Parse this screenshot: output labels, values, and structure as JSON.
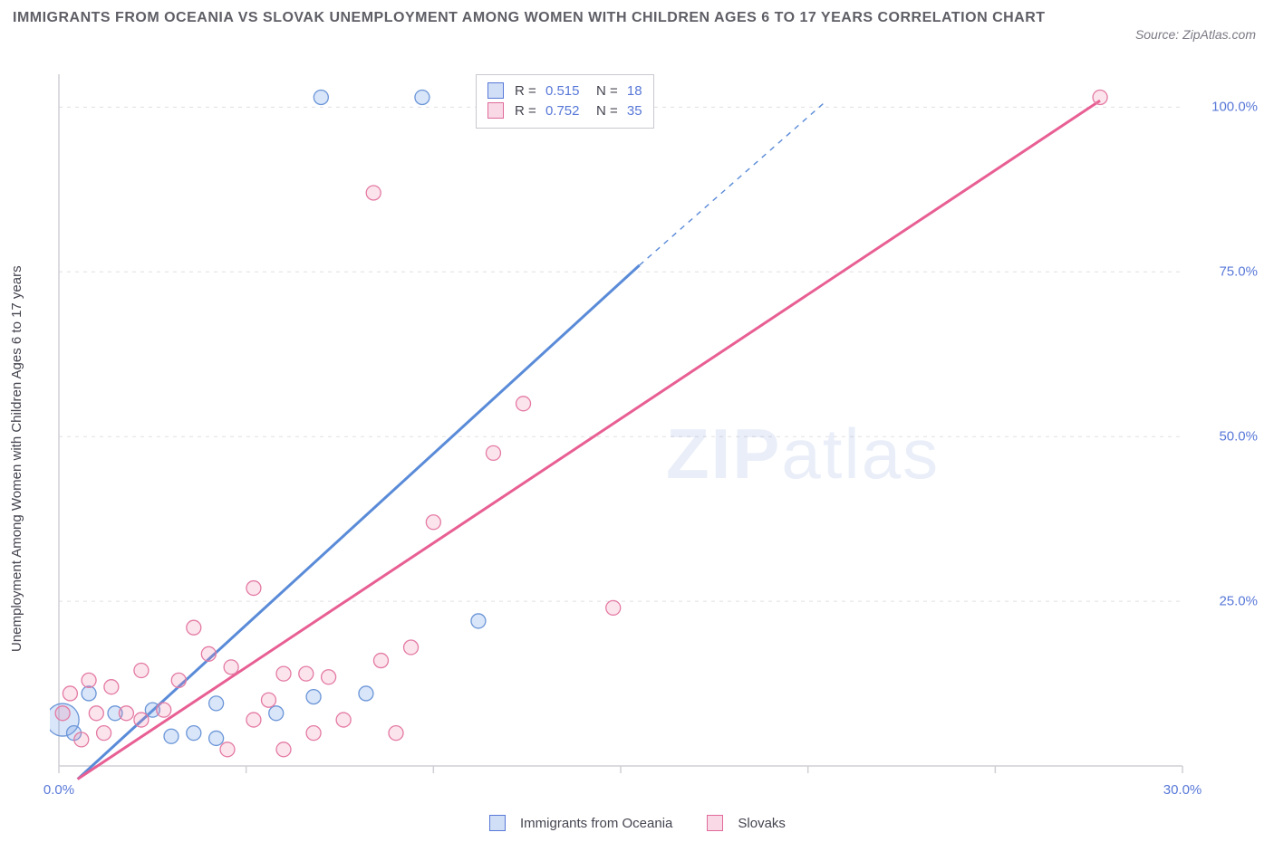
{
  "title": "IMMIGRANTS FROM OCEANIA VS SLOVAK UNEMPLOYMENT AMONG WOMEN WITH CHILDREN AGES 6 TO 17 YEARS CORRELATION CHART",
  "title_fontsize": 16,
  "title_color": "#5e5e66",
  "source_text": "Source: ZipAtlas.com",
  "source_fontsize": 14,
  "ylabel": "Unemployment Among Women with Children Ages 6 to 17 years",
  "watermark": "ZIPatlas",
  "chart": {
    "type": "scatter",
    "background_color": "#ffffff",
    "grid_color": "#e0e0e4",
    "axis_color": "#cfcfd6",
    "tick_label_color": "#5878d8",
    "xlim": [
      0,
      30
    ],
    "ylim": [
      0,
      105
    ],
    "x_ticks": [
      0,
      5,
      10,
      15,
      20,
      25,
      30
    ],
    "x_tick_labels": [
      "0.0%",
      "",
      "",
      "",
      "",
      "",
      "30.0%"
    ],
    "y_ticks": [
      25,
      50,
      75,
      100
    ],
    "y_tick_labels": [
      "25.0%",
      "50.0%",
      "75.0%",
      "100.0%"
    ],
    "grid_y": [
      25,
      50,
      75,
      100
    ],
    "marker_radius": 8,
    "marker_stroke_width": 1.3,
    "line_width": 3,
    "series": [
      {
        "name": "Immigrants from Oceania",
        "color": "#5a8bd8",
        "fill": "rgba(120,160,230,0.28)",
        "stroke": "#6a95d8",
        "R": "0.515",
        "N": "18",
        "trend": {
          "x1": 0.5,
          "y1": -2,
          "x2": 15.5,
          "y2": 76,
          "dash_from_x": 15.5,
          "dash_to_x": 20.5,
          "dash_to_y": 101
        },
        "points": [
          {
            "x": 0.1,
            "y": 7,
            "r": 18
          },
          {
            "x": 0.4,
            "y": 5
          },
          {
            "x": 0.8,
            "y": 11
          },
          {
            "x": 1.5,
            "y": 8
          },
          {
            "x": 2.5,
            "y": 8.5
          },
          {
            "x": 3.0,
            "y": 4.5
          },
          {
            "x": 3.6,
            "y": 5.0
          },
          {
            "x": 4.2,
            "y": 4.2
          },
          {
            "x": 4.2,
            "y": 9.5
          },
          {
            "x": 5.8,
            "y": 8.0
          },
          {
            "x": 6.8,
            "y": 10.5
          },
          {
            "x": 8.2,
            "y": 11.0
          },
          {
            "x": 11.2,
            "y": 22.0
          },
          {
            "x": 7.0,
            "y": 101.5
          },
          {
            "x": 9.7,
            "y": 101.5
          }
        ]
      },
      {
        "name": "Slovaks",
        "color": "#e85f93",
        "fill": "rgba(235,130,170,0.22)",
        "stroke": "#e47aa3",
        "R": "0.752",
        "N": "35",
        "trend": {
          "x1": 0.5,
          "y1": -2,
          "x2": 27.8,
          "y2": 101
        },
        "points": [
          {
            "x": 0.1,
            "y": 8
          },
          {
            "x": 0.3,
            "y": 11
          },
          {
            "x": 0.6,
            "y": 4
          },
          {
            "x": 0.8,
            "y": 13
          },
          {
            "x": 1.0,
            "y": 8
          },
          {
            "x": 1.2,
            "y": 5
          },
          {
            "x": 1.4,
            "y": 12
          },
          {
            "x": 1.8,
            "y": 8
          },
          {
            "x": 2.2,
            "y": 7
          },
          {
            "x": 2.2,
            "y": 14.5
          },
          {
            "x": 2.8,
            "y": 8.5
          },
          {
            "x": 3.2,
            "y": 13
          },
          {
            "x": 3.6,
            "y": 21
          },
          {
            "x": 4.0,
            "y": 17
          },
          {
            "x": 4.6,
            "y": 15
          },
          {
            "x": 4.5,
            "y": 2.5
          },
          {
            "x": 5.2,
            "y": 7
          },
          {
            "x": 5.2,
            "y": 27
          },
          {
            "x": 5.6,
            "y": 10
          },
          {
            "x": 6.0,
            "y": 14
          },
          {
            "x": 6.0,
            "y": 2.5
          },
          {
            "x": 6.6,
            "y": 14
          },
          {
            "x": 6.8,
            "y": 5
          },
          {
            "x": 7.2,
            "y": 13.5
          },
          {
            "x": 7.6,
            "y": 7
          },
          {
            "x": 8.6,
            "y": 16
          },
          {
            "x": 9.4,
            "y": 18
          },
          {
            "x": 9.0,
            "y": 5
          },
          {
            "x": 10.0,
            "y": 37
          },
          {
            "x": 11.6,
            "y": 47.5
          },
          {
            "x": 12.4,
            "y": 55
          },
          {
            "x": 14.8,
            "y": 24
          },
          {
            "x": 8.4,
            "y": 87
          },
          {
            "x": 27.8,
            "y": 101.5
          }
        ]
      }
    ],
    "legend_series": [
      {
        "swatch": "blue",
        "label": "Immigrants from Oceania"
      },
      {
        "swatch": "pink",
        "label": "Slovaks"
      }
    ]
  }
}
